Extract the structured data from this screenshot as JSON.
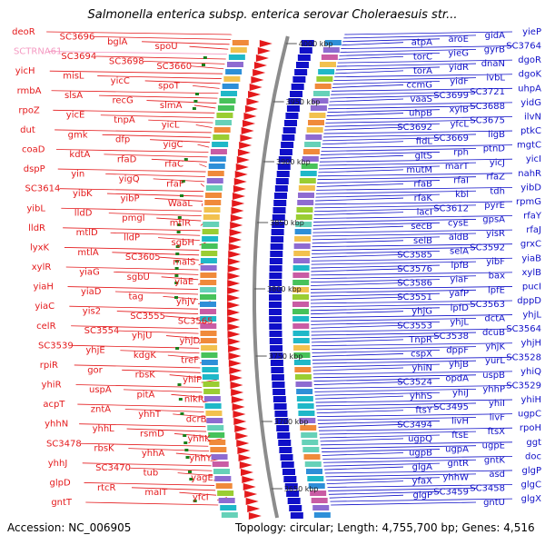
{
  "title": "Salmonella enterica subsp. enterica serovar Choleraesuis str...",
  "footer": {
    "accession": "Accession: NC_006905",
    "topology": "Topology: circular; Length: 4,755,700 bp; Genes: 4,516"
  },
  "positions": [
    "4000 kbp",
    "3950 kbp",
    "3900 kbp",
    "3850 kbp",
    "3800 kbp",
    "3750 kbp",
    "3700 kbp",
    "3650 kbp"
  ],
  "genes_left": [
    {
      "text": "deoR",
      "c": "red"
    },
    {
      "text": "SC3696",
      "c": "red"
    },
    {
      "text": "bglA",
      "c": "red"
    },
    {
      "text": "spoU",
      "c": "red"
    },
    {
      "text": "SCTRNA61",
      "c": "pink"
    },
    {
      "text": "SC3694",
      "c": "red"
    },
    {
      "text": "SC3698",
      "c": "red"
    },
    {
      "text": "SC3660",
      "c": "red"
    },
    {
      "text": "yicH",
      "c": "red"
    },
    {
      "text": "misL",
      "c": "red"
    },
    {
      "text": "yicC",
      "c": "red"
    },
    {
      "text": "spoT",
      "c": "red"
    },
    {
      "text": "rmbA",
      "c": "red"
    },
    {
      "text": "slsA",
      "c": "red"
    },
    {
      "text": "recG",
      "c": "red"
    },
    {
      "text": "slmA",
      "c": "red"
    },
    {
      "text": "rpoZ",
      "c": "red"
    },
    {
      "text": "yicE",
      "c": "red"
    },
    {
      "text": "tnpA",
      "c": "red"
    },
    {
      "text": "yicL",
      "c": "red"
    },
    {
      "text": "dut",
      "c": "red"
    },
    {
      "text": "gmk",
      "c": "red"
    },
    {
      "text": "dfp",
      "c": "red"
    },
    {
      "text": "yigC",
      "c": "red"
    },
    {
      "text": "coaD",
      "c": "red"
    },
    {
      "text": "kdtA",
      "c": "red"
    },
    {
      "text": "rfaD",
      "c": "red"
    },
    {
      "text": "rfaC",
      "c": "red"
    },
    {
      "text": "dspP",
      "c": "red"
    },
    {
      "text": "yin",
      "c": "red"
    },
    {
      "text": "yigQ",
      "c": "red"
    },
    {
      "text": "rfaF",
      "c": "red"
    },
    {
      "text": "SC3614",
      "c": "red"
    },
    {
      "text": "yibK",
      "c": "red"
    },
    {
      "text": "yibP",
      "c": "red"
    },
    {
      "text": "WaaL",
      "c": "red"
    },
    {
      "text": "yibL",
      "c": "red"
    },
    {
      "text": "lldD",
      "c": "red"
    },
    {
      "text": "pmgI",
      "c": "red"
    },
    {
      "text": "mtlR",
      "c": "red"
    },
    {
      "text": "lldR",
      "c": "red"
    },
    {
      "text": "mtlD",
      "c": "red"
    },
    {
      "text": "lldP",
      "c": "red"
    },
    {
      "text": "sgbH",
      "c": "red"
    },
    {
      "text": "lyxK",
      "c": "red"
    },
    {
      "text": "mtlA",
      "c": "red"
    },
    {
      "text": "SC3605",
      "c": "red"
    },
    {
      "text": "malS",
      "c": "red"
    },
    {
      "text": "xylR",
      "c": "red"
    },
    {
      "text": "yiaG",
      "c": "red"
    },
    {
      "text": "sgbU",
      "c": "red"
    },
    {
      "text": "yiaE",
      "c": "red"
    },
    {
      "text": "yiaH",
      "c": "red"
    },
    {
      "text": "yiaD",
      "c": "red"
    },
    {
      "text": "tag",
      "c": "red"
    },
    {
      "text": "yhjV",
      "c": "red"
    },
    {
      "text": "yiaC",
      "c": "red"
    },
    {
      "text": "yis2",
      "c": "red"
    },
    {
      "text": "SC3555",
      "c": "red"
    },
    {
      "text": "SC3565",
      "c": "red"
    },
    {
      "text": "celR",
      "c": "red"
    },
    {
      "text": "SC3554",
      "c": "red"
    },
    {
      "text": "yhjU",
      "c": "red"
    },
    {
      "text": "yhjD",
      "c": "red"
    },
    {
      "text": "SC3539",
      "c": "red"
    },
    {
      "text": "yhjE",
      "c": "red"
    },
    {
      "text": "kdgK",
      "c": "red"
    },
    {
      "text": "treF",
      "c": "red"
    },
    {
      "text": "rpiR",
      "c": "red"
    },
    {
      "text": "gor",
      "c": "red"
    },
    {
      "text": "rbsK",
      "c": "red"
    },
    {
      "text": "yhiP",
      "c": "red"
    },
    {
      "text": "yhiR",
      "c": "red"
    },
    {
      "text": "uspA",
      "c": "red"
    },
    {
      "text": "pitA",
      "c": "red"
    },
    {
      "text": "nikR",
      "c": "red"
    },
    {
      "text": "acpT",
      "c": "red"
    },
    {
      "text": "zntA",
      "c": "red"
    },
    {
      "text": "yhhT",
      "c": "red"
    },
    {
      "text": "dcrB",
      "c": "red"
    },
    {
      "text": "yhhN",
      "c": "red"
    },
    {
      "text": "yhhL",
      "c": "red"
    },
    {
      "text": "rsmD",
      "c": "red"
    },
    {
      "text": "yhhK",
      "c": "red"
    },
    {
      "text": "SC3478",
      "c": "red"
    },
    {
      "text": "rbsK",
      "c": "red"
    },
    {
      "text": "yhhA",
      "c": "red"
    },
    {
      "text": "yhhY",
      "c": "red"
    },
    {
      "text": "yhhJ",
      "c": "red"
    },
    {
      "text": "SC3470",
      "c": "red"
    },
    {
      "text": "tub",
      "c": "red"
    },
    {
      "text": "yagE",
      "c": "red"
    },
    {
      "text": "glpD",
      "c": "red"
    },
    {
      "text": "rtcR",
      "c": "red"
    },
    {
      "text": "malT",
      "c": "red"
    },
    {
      "text": "yfcI",
      "c": "red"
    },
    {
      "text": "gntT",
      "c": "red"
    }
  ],
  "genes_right": [
    {
      "text": "yieP",
      "c": "blue"
    },
    {
      "text": "gidA",
      "c": "blue"
    },
    {
      "text": "aroE",
      "c": "blue"
    },
    {
      "text": "atpA",
      "c": "blue"
    },
    {
      "text": "SC3764",
      "c": "blue"
    },
    {
      "text": "gyrB",
      "c": "blue"
    },
    {
      "text": "yieG",
      "c": "blue"
    },
    {
      "text": "torC",
      "c": "blue"
    },
    {
      "text": "dgoR",
      "c": "blue"
    },
    {
      "text": "dnaN",
      "c": "blue"
    },
    {
      "text": "yidR",
      "c": "blue"
    },
    {
      "text": "torA",
      "c": "blue"
    },
    {
      "text": "dgoK",
      "c": "blue"
    },
    {
      "text": "ivbL",
      "c": "blue"
    },
    {
      "text": "yidF",
      "c": "blue"
    },
    {
      "text": "ccmG",
      "c": "blue"
    },
    {
      "text": "uhpA",
      "c": "blue"
    },
    {
      "text": "SC3721",
      "c": "blue"
    },
    {
      "text": "SC3699",
      "c": "blue"
    },
    {
      "text": "vaaS",
      "c": "blue"
    },
    {
      "text": "yidG",
      "c": "blue"
    },
    {
      "text": "SC3688",
      "c": "blue"
    },
    {
      "text": "xylB",
      "c": "blue"
    },
    {
      "text": "uhpB",
      "c": "blue"
    },
    {
      "text": "ilvN",
      "c": "blue"
    },
    {
      "text": "SC3675",
      "c": "blue"
    },
    {
      "text": "yfcL",
      "c": "blue"
    },
    {
      "text": "SC3692",
      "c": "blue"
    },
    {
      "text": "ptkC",
      "c": "blue"
    },
    {
      "text": "ligB",
      "c": "blue"
    },
    {
      "text": "SC3669",
      "c": "blue"
    },
    {
      "text": "fidL",
      "c": "blue"
    },
    {
      "text": "mgtC",
      "c": "blue"
    },
    {
      "text": "ptnD",
      "c": "blue"
    },
    {
      "text": "rph",
      "c": "blue"
    },
    {
      "text": "gltS",
      "c": "blue"
    },
    {
      "text": "yicI",
      "c": "blue"
    },
    {
      "text": "yicJ",
      "c": "blue"
    },
    {
      "text": "marT",
      "c": "blue"
    },
    {
      "text": "mutM",
      "c": "blue"
    },
    {
      "text": "nahR",
      "c": "blue"
    },
    {
      "text": "rfaZ",
      "c": "blue"
    },
    {
      "text": "rfaI",
      "c": "blue"
    },
    {
      "text": "rfaB",
      "c": "blue"
    },
    {
      "text": "yibD",
      "c": "blue"
    },
    {
      "text": "tdh",
      "c": "blue"
    },
    {
      "text": "kbl",
      "c": "blue"
    },
    {
      "text": "rfaK",
      "c": "blue"
    },
    {
      "text": "rpmG",
      "c": "blue"
    },
    {
      "text": "pyrE",
      "c": "blue"
    },
    {
      "text": "SC3612",
      "c": "blue"
    },
    {
      "text": "lacI",
      "c": "blue"
    },
    {
      "text": "rfaY",
      "c": "blue"
    },
    {
      "text": "gpsA",
      "c": "blue"
    },
    {
      "text": "cysE",
      "c": "blue"
    },
    {
      "text": "secB",
      "c": "blue"
    },
    {
      "text": "rfaJ",
      "c": "blue"
    },
    {
      "text": "yisR",
      "c": "blue"
    },
    {
      "text": "aldB",
      "c": "blue"
    },
    {
      "text": "selB",
      "c": "blue"
    },
    {
      "text": "grxC",
      "c": "blue"
    },
    {
      "text": "SC3592",
      "c": "blue"
    },
    {
      "text": "selA",
      "c": "blue"
    },
    {
      "text": "SC3585",
      "c": "blue"
    },
    {
      "text": "yiaB",
      "c": "blue"
    },
    {
      "text": "yibF",
      "c": "blue"
    },
    {
      "text": "lpfB",
      "c": "blue"
    },
    {
      "text": "SC3576",
      "c": "blue"
    },
    {
      "text": "xylB",
      "c": "blue"
    },
    {
      "text": "bax",
      "c": "blue"
    },
    {
      "text": "yiaF",
      "c": "blue"
    },
    {
      "text": "SC3586",
      "c": "blue"
    },
    {
      "text": "pucI",
      "c": "blue"
    },
    {
      "text": "lpfE",
      "c": "blue"
    },
    {
      "text": "yafP",
      "c": "blue"
    },
    {
      "text": "SC3551",
      "c": "blue"
    },
    {
      "text": "dppD",
      "c": "blue"
    },
    {
      "text": "SC3563",
      "c": "blue"
    },
    {
      "text": "lpfD",
      "c": "blue"
    },
    {
      "text": "yhjG",
      "c": "blue"
    },
    {
      "text": "yhjL",
      "c": "blue"
    },
    {
      "text": "dctA",
      "c": "blue"
    },
    {
      "text": "yhjL",
      "c": "blue"
    },
    {
      "text": "SC3553",
      "c": "blue"
    },
    {
      "text": "SC3564",
      "c": "blue"
    },
    {
      "text": "dcuB",
      "c": "blue"
    },
    {
      "text": "SC3538",
      "c": "blue"
    },
    {
      "text": "TnpR",
      "c": "blue"
    },
    {
      "text": "yhjH",
      "c": "blue"
    },
    {
      "text": "yhjK",
      "c": "blue"
    },
    {
      "text": "dppF",
      "c": "blue"
    },
    {
      "text": "cspX",
      "c": "blue"
    },
    {
      "text": "SC3528",
      "c": "blue"
    },
    {
      "text": "yurL",
      "c": "blue"
    },
    {
      "text": "yhjB",
      "c": "blue"
    },
    {
      "text": "yhiN",
      "c": "blue"
    },
    {
      "text": "yhiQ",
      "c": "blue"
    },
    {
      "text": "uspB",
      "c": "blue"
    },
    {
      "text": "opdA",
      "c": "blue"
    },
    {
      "text": "SC3524",
      "c": "blue"
    },
    {
      "text": "SC3529",
      "c": "blue"
    },
    {
      "text": "yhhP",
      "c": "blue"
    },
    {
      "text": "yhiJ",
      "c": "blue"
    },
    {
      "text": "yhhS",
      "c": "blue"
    },
    {
      "text": "yhiH",
      "c": "blue"
    },
    {
      "text": "yhiI",
      "c": "blue"
    },
    {
      "text": "SC3495",
      "c": "blue"
    },
    {
      "text": "ftsY",
      "c": "blue"
    },
    {
      "text": "ugpC",
      "c": "blue"
    },
    {
      "text": "livF",
      "c": "blue"
    },
    {
      "text": "livH",
      "c": "blue"
    },
    {
      "text": "SC3494",
      "c": "blue"
    },
    {
      "text": "rpoH",
      "c": "blue"
    },
    {
      "text": "ftsX",
      "c": "blue"
    },
    {
      "text": "ftsE",
      "c": "blue"
    },
    {
      "text": "ugpQ",
      "c": "blue"
    },
    {
      "text": "ggt",
      "c": "blue"
    },
    {
      "text": "ugpE",
      "c": "blue"
    },
    {
      "text": "ugpA",
      "c": "blue"
    },
    {
      "text": "ugpB",
      "c": "blue"
    },
    {
      "text": "doc",
      "c": "blue"
    },
    {
      "text": "gntK",
      "c": "blue"
    },
    {
      "text": "gntR",
      "c": "blue"
    },
    {
      "text": "glgA",
      "c": "blue"
    },
    {
      "text": "glgP",
      "c": "blue"
    },
    {
      "text": "asd",
      "c": "blue"
    },
    {
      "text": "yhhW",
      "c": "blue"
    },
    {
      "text": "yfaX",
      "c": "blue"
    },
    {
      "text": "glgC",
      "c": "blue"
    },
    {
      "text": "SC3458",
      "c": "blue"
    },
    {
      "text": "SC3459",
      "c": "blue"
    },
    {
      "text": "glgP",
      "c": "blue"
    },
    {
      "text": "glgX",
      "c": "blue"
    },
    {
      "text": "gntU",
      "c": "blue"
    }
  ],
  "colors": {
    "forward": "#e41a1c",
    "reverse": "#1010c8",
    "backbone": "#8c8c8c",
    "trna": "#f49ac2"
  }
}
